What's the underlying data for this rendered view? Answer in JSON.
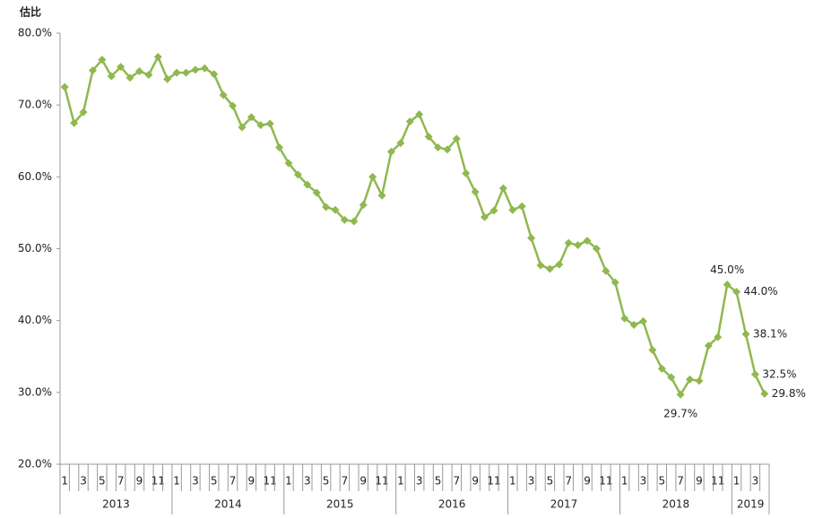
{
  "chart_data": {
    "type": "line",
    "y_axis_title": "估比",
    "categories": [
      "1",
      null,
      "3",
      null,
      "5",
      null,
      "7",
      null,
      "9",
      null,
      "11",
      null,
      "1",
      null,
      "3",
      null,
      "5",
      null,
      "7",
      null,
      "9",
      null,
      "11",
      null,
      "1",
      null,
      "3",
      null,
      "5",
      null,
      "7",
      null,
      "9",
      null,
      "11",
      null,
      "1",
      null,
      "3",
      null,
      "5",
      null,
      "7",
      null,
      "9",
      null,
      "11",
      null,
      "1",
      null,
      "3",
      null,
      "5",
      null,
      "7",
      null,
      "9",
      null,
      "11",
      null,
      "1",
      null,
      "3",
      null,
      "5",
      null,
      "7",
      null,
      "9",
      null,
      "11",
      null,
      "1",
      null,
      "3",
      null
    ],
    "groups": [
      "2013",
      "2014",
      "2015",
      "2016",
      "2017",
      "2018",
      "2019"
    ],
    "series": [
      {
        "color": "#8fb84f",
        "values": [
          72.5,
          67.5,
          69.0,
          74.8,
          76.3,
          74.0,
          75.3,
          73.8,
          74.7,
          74.2,
          76.7,
          73.6,
          74.5,
          74.5,
          74.9,
          75.1,
          74.3,
          71.4,
          69.9,
          66.9,
          68.3,
          67.2,
          67.4,
          64.1,
          61.9,
          60.3,
          58.9,
          57.8,
          55.8,
          55.4,
          54.0,
          53.8,
          56.1,
          60.0,
          57.4,
          63.5,
          64.7,
          67.7,
          68.7,
          65.6,
          64.1,
          63.8,
          65.3,
          60.5,
          57.9,
          54.4,
          55.3,
          58.4,
          55.4,
          55.9,
          51.5,
          47.7,
          47.2,
          47.8,
          50.8,
          50.5,
          51.1,
          50.0,
          46.9,
          45.3,
          40.3,
          39.4,
          39.9,
          35.9,
          33.3,
          32.1,
          29.7,
          31.8,
          31.6,
          36.5,
          37.7,
          45.0,
          44.0,
          38.1,
          32.5,
          29.8
        ],
        "value_labels": [
          null,
          null,
          null,
          null,
          null,
          null,
          null,
          null,
          null,
          null,
          null,
          null,
          null,
          null,
          null,
          null,
          null,
          null,
          null,
          null,
          null,
          null,
          null,
          null,
          null,
          null,
          null,
          null,
          null,
          null,
          null,
          null,
          null,
          null,
          null,
          null,
          null,
          null,
          null,
          null,
          null,
          null,
          null,
          null,
          null,
          null,
          null,
          null,
          null,
          null,
          null,
          null,
          null,
          null,
          null,
          null,
          null,
          null,
          null,
          null,
          null,
          null,
          null,
          null,
          null,
          null,
          "29.7%",
          null,
          null,
          null,
          null,
          "45.0%",
          "44.0%",
          "38.1%",
          "32.5%",
          "29.8%"
        ]
      }
    ],
    "ylim": [
      20,
      80
    ],
    "yticks": [
      {
        "value": 20,
        "label": "20.0%"
      },
      {
        "value": 30,
        "label": "30.0%"
      },
      {
        "value": 40,
        "label": "40.0%"
      },
      {
        "value": 50,
        "label": "50.0%"
      },
      {
        "value": 60,
        "label": "60.0%"
      },
      {
        "value": 70,
        "label": "70.0%"
      },
      {
        "value": 80,
        "label": "80.0%"
      }
    ]
  }
}
